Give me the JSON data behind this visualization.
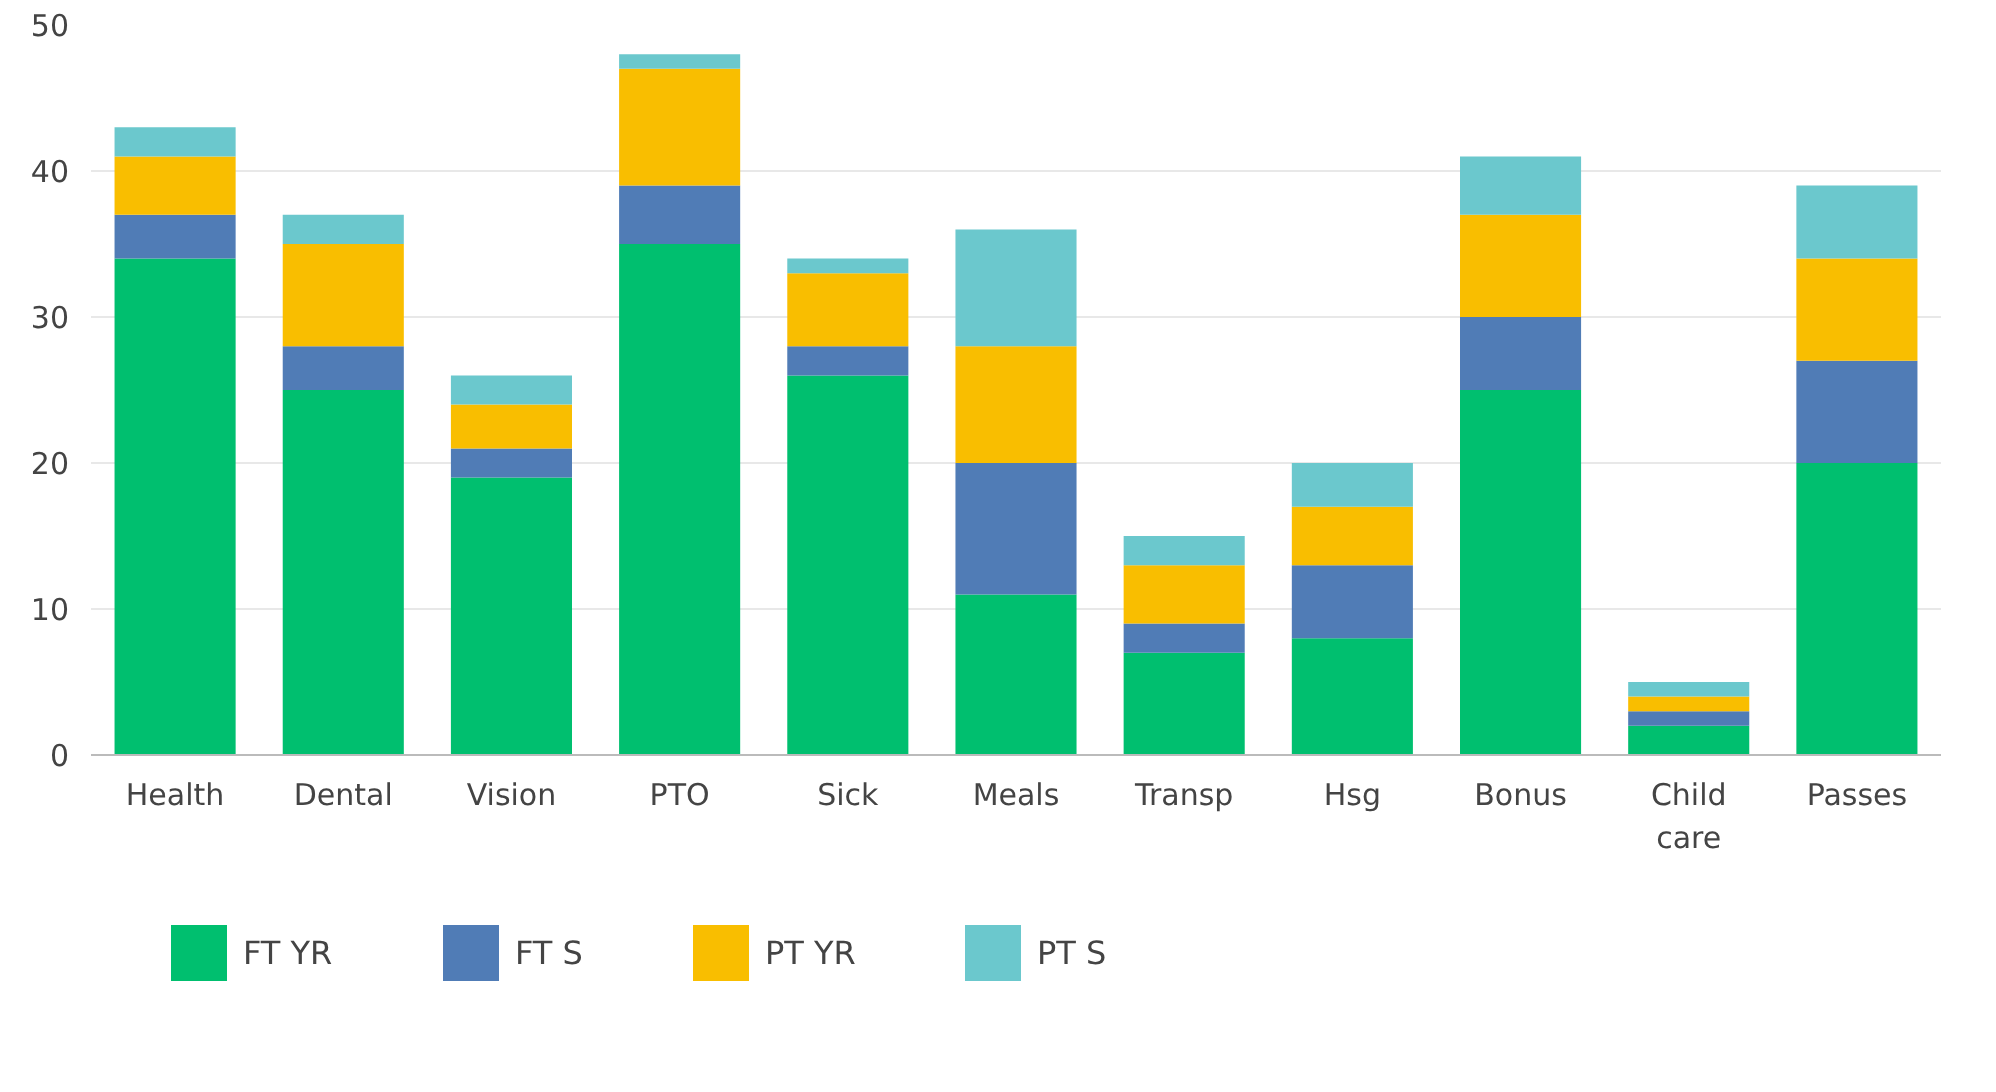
{
  "chart_data": {
    "type": "bar",
    "stacked": true,
    "categories": [
      "Health",
      "Dental",
      "Vision",
      "PTO",
      "Sick",
      "Meals",
      "Transp",
      "Hsg",
      "Bonus",
      "Child care",
      "Passes"
    ],
    "series": [
      {
        "name": "FT YR",
        "color": "#00bf6f",
        "values": [
          34,
          25,
          19,
          35,
          26,
          11,
          7,
          8,
          25,
          2,
          20
        ]
      },
      {
        "name": "FT S",
        "color": "#507cb6",
        "values": [
          3,
          3,
          2,
          4,
          2,
          9,
          2,
          5,
          5,
          1,
          7
        ]
      },
      {
        "name": "PT YR",
        "color": "#f9be00",
        "values": [
          4,
          7,
          3,
          8,
          5,
          8,
          4,
          4,
          7,
          1,
          7
        ]
      },
      {
        "name": "PT S",
        "color": "#6bc8cd",
        "values": [
          2,
          2,
          2,
          1,
          1,
          8,
          2,
          3,
          4,
          1,
          5
        ]
      }
    ],
    "ylim": [
      0,
      50
    ],
    "yticks": [
      0,
      10,
      20,
      30,
      40,
      50
    ],
    "grid": "y",
    "legend": "bottom"
  }
}
